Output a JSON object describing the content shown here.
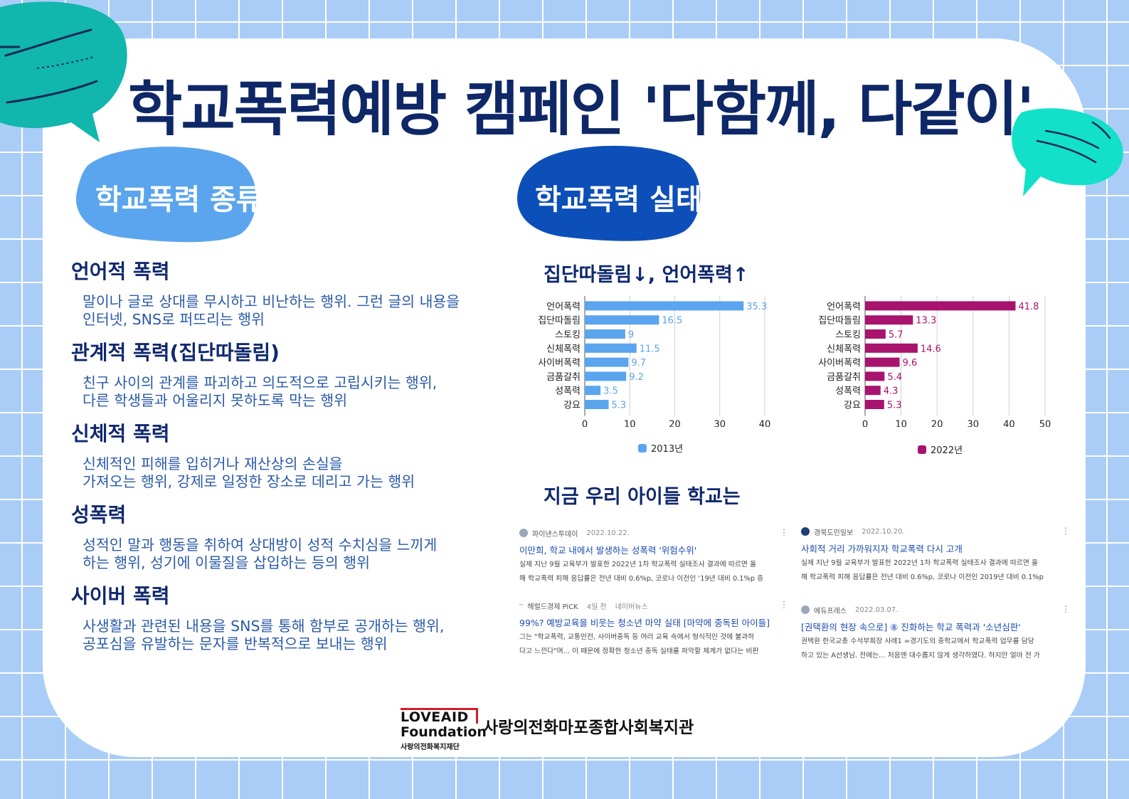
{
  "title": "학교폭력예방 캠페인 '다함께, 다같이'",
  "left_section": {
    "label": "학교폭력 종류",
    "types": [
      {
        "heading": "언어적 폭력",
        "description": "말이나 글로 상대를 무시하고 비난하는 행위. 그런 글의 내용을\n인터넷, SNS로 퍼뜨리는 행위"
      },
      {
        "heading": "관계적 폭력(집단따돌림)",
        "description": "친구 사이의 관계를 파괴하고 의도적으로 고립시키는 행위,\n다른 학생들과 어울리지 못하도록 막는 행위"
      },
      {
        "heading": "신체적 폭력",
        "description": "신체적인 피해를 입히거나 재산상의 손실을\n가져오는 행위, 강제로 일정한 장소로 데리고 가는 행위"
      },
      {
        "heading": "성폭력",
        "description": "성적인 말과 행동을 취하여 상대방이 성적 수치심을 느끼게\n하는 행위, 성기에 이물질을 삽입하는 등의 행위"
      },
      {
        "heading": "사이버 폭력",
        "description": "사생활과 관련된 내용을 SNS를 통해 함부로 공개하는 행위,\n공포심을 유발하는 문자를 반복적으로 보내는 행위"
      }
    ]
  },
  "right_section": {
    "label": "학교폭력 실태",
    "charts_heading": "집단따돌림↓, 언어폭력↑",
    "news_heading": "지금 우리 아이들 학교는"
  },
  "chart_data": [
    {
      "type": "bar",
      "orientation": "horizontal",
      "categories": [
        "언어폭력",
        "집단따돌림",
        "스토킹",
        "신체폭력",
        "사이버폭력",
        "금품갈취",
        "성폭력",
        "강요"
      ],
      "series": [
        {
          "name": "2013년",
          "values": [
            35.3,
            16.5,
            9,
            11.5,
            9.7,
            9.2,
            3.5,
            5.3
          ]
        }
      ],
      "xlim": [
        0,
        40
      ],
      "xticks": [
        0,
        10,
        20,
        30,
        40
      ],
      "grid": true,
      "legend": "bottom",
      "color": "#5aa5ee"
    },
    {
      "type": "bar",
      "orientation": "horizontal",
      "categories": [
        "언어폭력",
        "집단따돌림",
        "스토킹",
        "신체폭력",
        "사이버폭력",
        "금품갈취",
        "성폭력",
        "강요"
      ],
      "series": [
        {
          "name": "2022년",
          "values": [
            41.8,
            13.3,
            5.7,
            14.6,
            9.6,
            5.4,
            4.3,
            5.3
          ]
        }
      ],
      "xlim": [
        0,
        50
      ],
      "xticks": [
        0,
        10,
        20,
        30,
        40,
        50
      ],
      "grid": true,
      "legend": "bottom",
      "color": "#a8136e"
    }
  ],
  "news": [
    {
      "source": "파이낸스투데이",
      "date": "2022.10.22.",
      "headline": "이만희, 학교 내에서 발생하는 성폭력 '위험수위'",
      "snippet1": "실제 지난 9월 교육부가 발표한 2022년 1차 학교폭력 실태조사 결과에 따르면 올",
      "snippet2": "해 학교폭력 피해 응답률은 전년 대비 0.6%p, 코로나 이전인 '19년 대비 0.1%p 증"
    },
    {
      "source": "경북도민일보",
      "date": "2022.10.20.",
      "headline": "사회적 거리 가까워지자 학교폭력 다시 고개",
      "snippet1": "실제 지난 9월 교육부가 발표한 2022년 1차 학교폭력 실태조사 결과에 따르면 올",
      "snippet2": "해 학교폭력 피해 응답률은 전년 대비 0.6%p, 코로나 이전인 2019년 대비 0.1%p"
    },
    {
      "source": "헤럴드경제 PiCK",
      "date": "4일 전",
      "extra": "네이버뉴스",
      "headline": "99%? 예방교육을 비웃는 청소년 마약 실태 [마약에 중독된 아이들]",
      "snippet1": "그는 \"학교폭력, 교통안전, 사이버중독 등 여러 교육 속에서 형식적인 것에 불과하",
      "snippet2": "다고 느낀다\"며... 이 때문에 정확한 청소년 중독 실태를 파악할 체계가 없다는 비판"
    },
    {
      "source": "에듀프레스",
      "date": "2022.03.07.",
      "headline": "[권택환의 현장 속으로] ⑧ 진화하는 학교 폭력과 '소년심판'",
      "snippet1": "권택환 한국교총 수석부회장 사례1 =경기도의 중학교에서 학교폭력 업무를 담당",
      "snippet2": "하고 있는 A선생님. 전에는... 처음엔 대수롭지 않게 생각하였다. 하지만 얼마 전 가"
    }
  ],
  "footer": {
    "logo_line1": "LOVEAID",
    "logo_line2": "Foundation",
    "logo_line3": "사랑의전화복지재단",
    "org_name": "사랑의전화마포종합사회복지관"
  },
  "colors": {
    "background": "#a9cdf6",
    "title": "#0e2766",
    "accent_light_blob": "#5aa5ee",
    "accent_dark_blob": "#0d4fb8",
    "speech_teal": "#11b6ad",
    "speech_aqua": "#13e0c8",
    "bar_2013": "#5aa5ee",
    "bar_2022": "#a8136e"
  },
  "icons": [
    "speech-bubble-icon",
    "news-source-icon",
    "more-options-icon"
  ]
}
